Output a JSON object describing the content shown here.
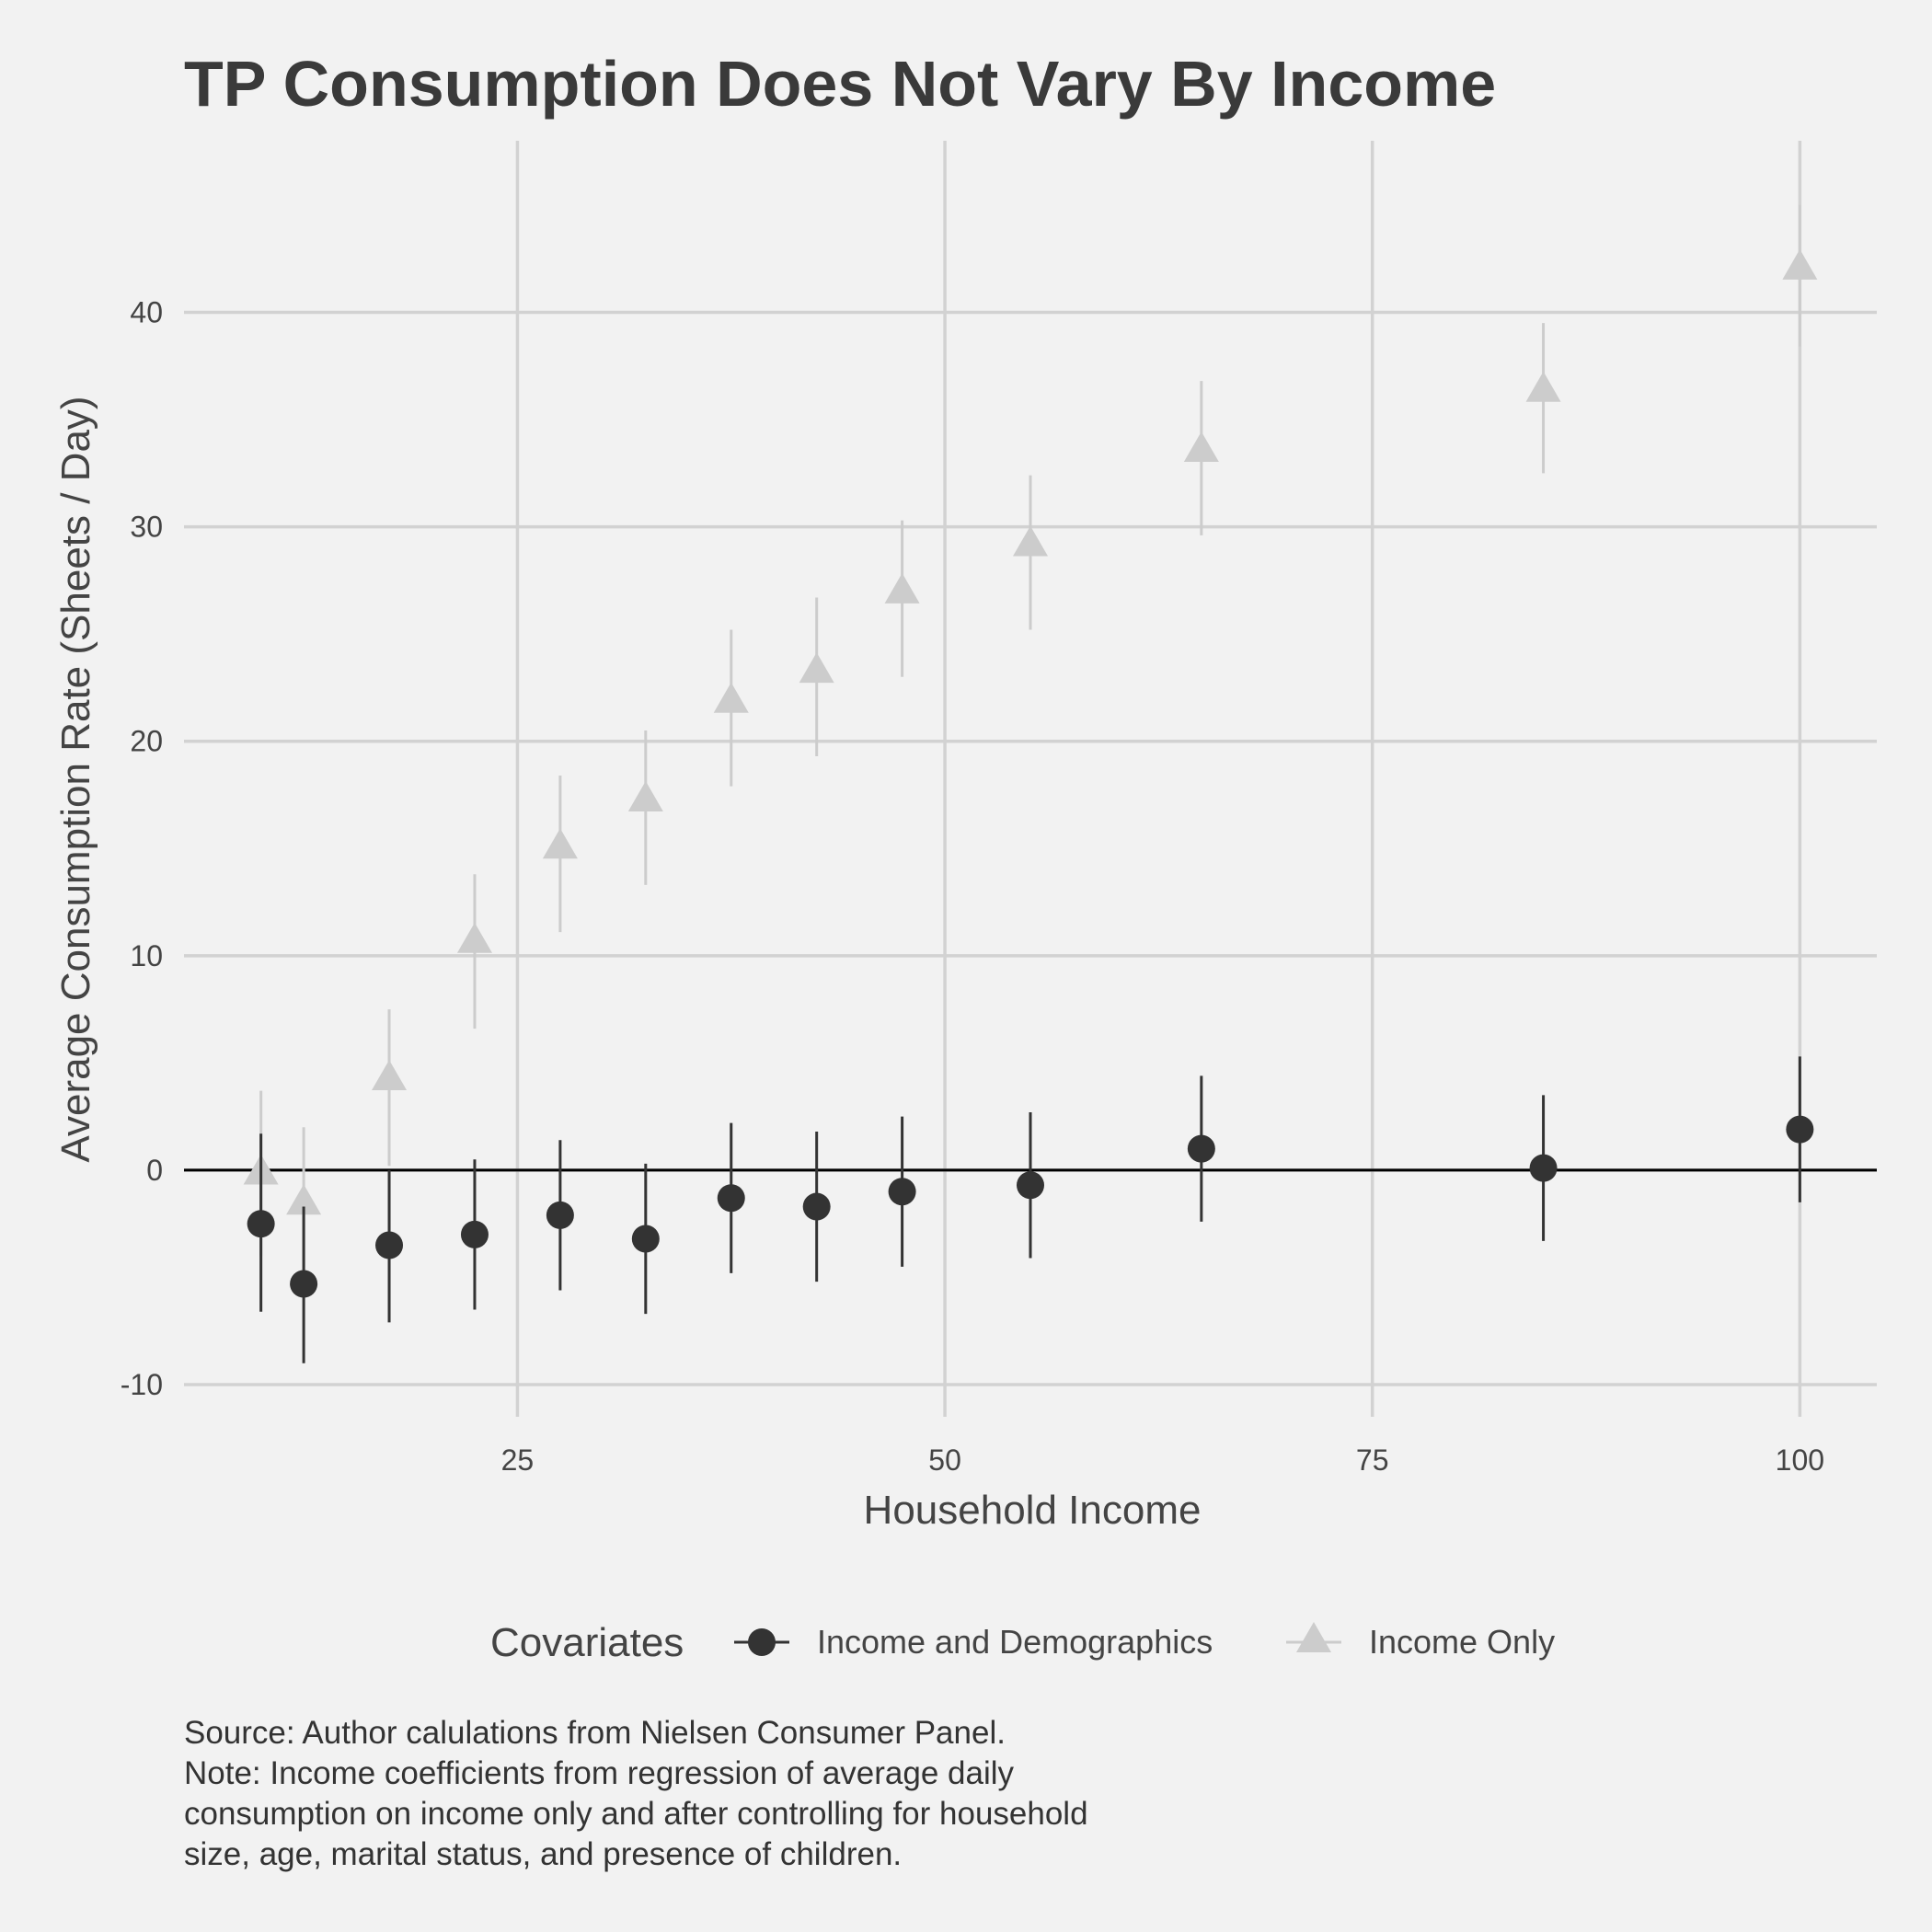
{
  "chart_data": {
    "type": "scatter",
    "title": "TP Consumption Does Not Vary By Income",
    "xlabel": "Household Income",
    "ylabel": "Average Consumption Rate (Sheets / Day)",
    "xlim": [
      5.5,
      104.5
    ],
    "ylim": [
      -11.5,
      48
    ],
    "xticks": [
      25,
      50,
      75,
      100
    ],
    "yticks": [
      -10,
      0,
      10,
      20,
      30,
      40
    ],
    "grid": true,
    "reference_line_y": 0,
    "legend": {
      "title": "Covariates",
      "position": "bottom"
    },
    "x": [
      10,
      12.5,
      17.5,
      22.5,
      27.5,
      32.5,
      37.5,
      42.5,
      47.5,
      55,
      65,
      85,
      100
    ],
    "series": [
      {
        "name": "Income and Demographics",
        "marker": "circle",
        "color": "#333333",
        "y": [
          -2.5,
          -5.3,
          -3.5,
          -3.0,
          -2.1,
          -3.2,
          -1.3,
          -1.7,
          -1.0,
          -0.7,
          1.0,
          0.1,
          1.9
        ],
        "low": [
          -6.6,
          -9.0,
          -7.1,
          -6.5,
          -5.6,
          -6.7,
          -4.8,
          -5.2,
          -4.5,
          -4.1,
          -2.4,
          -3.3,
          -1.5
        ],
        "high": [
          1.7,
          -1.7,
          0.0,
          0.5,
          1.4,
          0.3,
          2.2,
          1.8,
          2.5,
          2.7,
          4.4,
          3.5,
          5.3
        ]
      },
      {
        "name": "Income Only",
        "marker": "triangle",
        "color": "#cccccc",
        "y": [
          -0.2,
          -1.6,
          4.2,
          10.6,
          15.0,
          17.2,
          21.8,
          23.2,
          26.9,
          29.1,
          33.5,
          36.3,
          42.0
        ],
        "low": [
          -4.0,
          -5.3,
          0.2,
          6.6,
          11.1,
          13.3,
          17.9,
          19.3,
          23.0,
          25.2,
          29.6,
          32.5,
          38.4
        ],
        "high": [
          3.7,
          2.0,
          7.5,
          13.8,
          18.4,
          20.5,
          25.2,
          26.7,
          30.3,
          32.4,
          36.8,
          39.5,
          45.0
        ]
      }
    ]
  },
  "caption": {
    "lines": [
      "Source: Author calulations from Nielsen Consumer Panel.",
      "Note: Income coefficients from regression of average daily",
      "consumption on income only and after controlling for household",
      "size, age, marital status, and presence of children."
    ]
  }
}
